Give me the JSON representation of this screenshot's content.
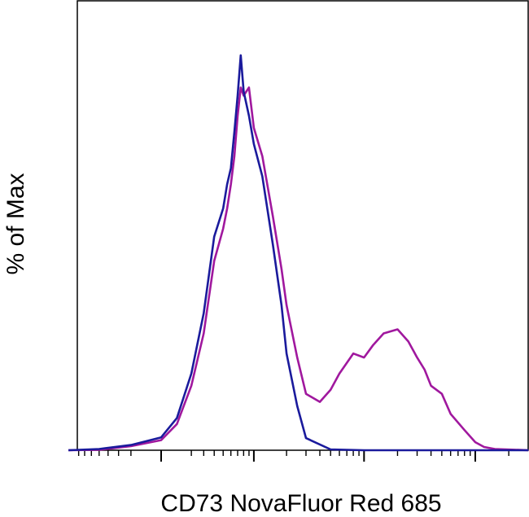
{
  "chart_data": {
    "type": "line",
    "title": "",
    "xlabel": "CD73 NovaFluor Red 685",
    "ylabel": "% of Max",
    "x_scale": "biexponential",
    "xlim": [
      -1000,
      300000
    ],
    "ylim": [
      0,
      100
    ],
    "grid": false,
    "legend": "none",
    "series": [
      {
        "color": "#1a1a9c",
        "x": [
          -1000,
          -500,
          -200,
          0,
          100,
          200,
          300,
          400,
          500,
          550,
          600,
          650,
          700,
          750,
          800,
          900,
          1000,
          1200,
          1500,
          1800,
          2000,
          2500,
          3000,
          5000,
          10000,
          100000,
          300000
        ],
        "y": [
          0,
          0.3,
          1.3,
          3.2,
          8,
          19,
          34,
          53,
          60,
          66,
          70,
          79,
          88,
          98,
          89,
          83,
          76,
          68,
          51,
          36,
          24,
          11,
          3,
          0.2,
          0,
          0,
          0
        ]
      },
      {
        "color": "#a0189e",
        "x": [
          -1000,
          -500,
          -200,
          0,
          100,
          200,
          300,
          400,
          500,
          550,
          600,
          650,
          700,
          750,
          800,
          900,
          1000,
          1200,
          1500,
          1800,
          2000,
          2500,
          3000,
          4000,
          5000,
          6000,
          8000,
          10000,
          12000,
          15000,
          20000,
          25000,
          30000,
          35000,
          40000,
          50000,
          60000,
          80000,
          100000,
          120000,
          150000,
          300000
        ],
        "y": [
          0,
          0.1,
          1,
          2.5,
          6.5,
          16,
          29,
          47,
          55,
          60,
          66,
          73,
          83,
          90,
          88,
          90,
          80,
          73,
          58,
          45,
          36,
          23,
          14,
          12,
          15,
          19,
          24,
          23,
          26,
          29,
          30,
          27,
          23,
          20,
          16,
          14,
          9,
          5,
          2,
          0.8,
          0.3,
          0
        ]
      }
    ]
  }
}
